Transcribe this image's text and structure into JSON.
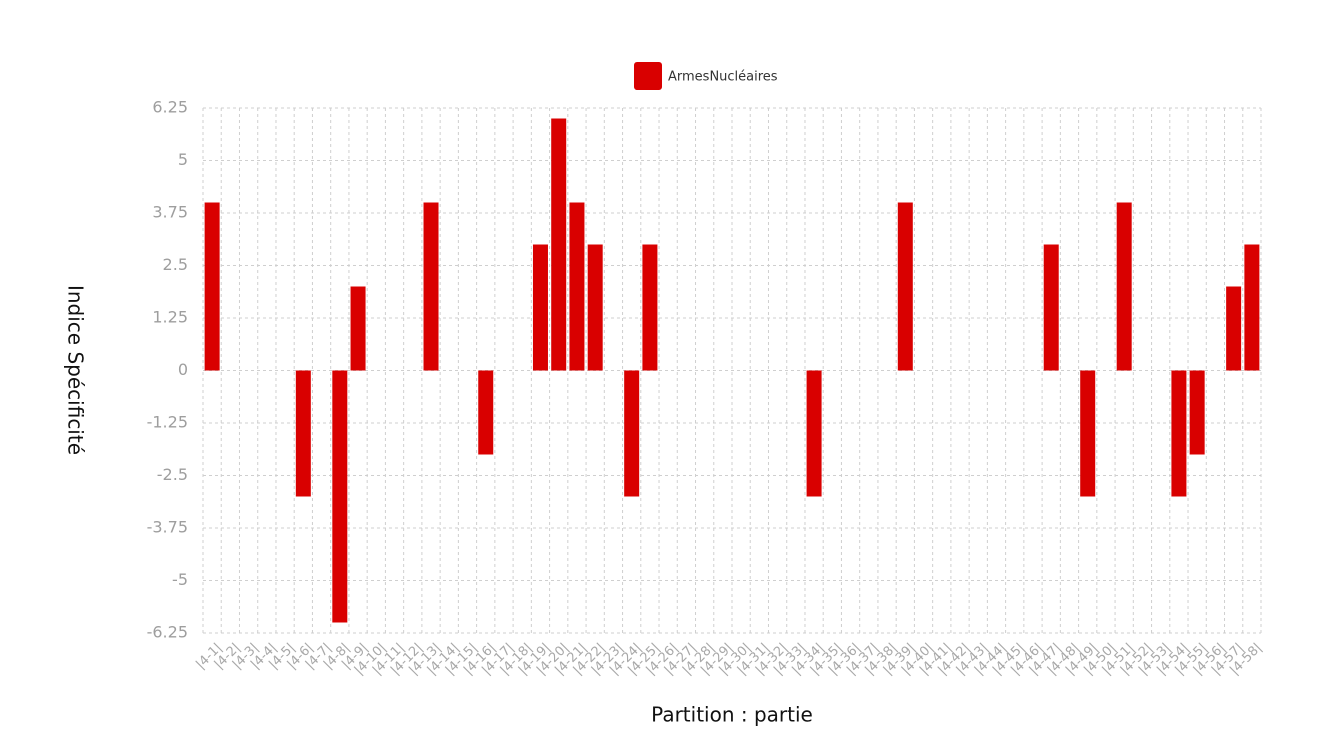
{
  "chart_data": {
    "type": "bar",
    "categories": [
      "|4-1|",
      "|4-2|",
      "|4-3|",
      "|4-4|",
      "|4-5|",
      "|4-6|",
      "|4-7|",
      "|4-8|",
      "|4-9|",
      "|4-10|",
      "|4-11|",
      "|4-12|",
      "|4-13|",
      "|4-14|",
      "|4-15|",
      "|4-16|",
      "|4-17|",
      "|4-18|",
      "|4-19|",
      "|4-20|",
      "|4-21|",
      "|4-22|",
      "|4-23|",
      "|4-24|",
      "|4-25|",
      "|4-26|",
      "|4-27|",
      "|4-28|",
      "|4-29|",
      "|4-30|",
      "|4-31|",
      "|4-32|",
      "|4-33|",
      "|4-34|",
      "|4-35|",
      "|4-36|",
      "|4-37|",
      "|4-38|",
      "|4-39|",
      "|4-40|",
      "|4-41|",
      "|4-42|",
      "|4-43|",
      "|4-44|",
      "|4-45|",
      "|4-46|",
      "|4-47|",
      "|4-48|",
      "|4-49|",
      "|4-50|",
      "|4-51|",
      "|4-52|",
      "|4-53|",
      "|4-54|",
      "|4-55|",
      "|4-56|",
      "|4-57|",
      "|4-58|"
    ],
    "series": [
      {
        "name": "ArmesNucléaires",
        "color": "#d90000",
        "values": [
          4,
          0,
          0,
          0,
          0,
          -3,
          0,
          -6,
          2,
          0,
          0,
          0,
          4,
          0,
          0,
          -2,
          0,
          0,
          3,
          6,
          4,
          3,
          0,
          -3,
          3,
          0,
          0,
          0,
          0,
          0,
          0,
          0,
          0,
          -3,
          0,
          0,
          0,
          0,
          4,
          0,
          0,
          0,
          0,
          0,
          0,
          0,
          3,
          0,
          -3,
          0,
          4,
          0,
          0,
          -3,
          -2,
          0,
          2,
          3
        ]
      }
    ],
    "yticks": [
      "6.25",
      "5",
      "3.75",
      "2.5",
      "1.25",
      "0",
      "-1.25",
      "-2.5",
      "-3.75",
      "-5",
      "-6.25"
    ],
    "ylim": [
      -6.25,
      6.25
    ],
    "xlabel": "Partition : partie",
    "ylabel": "Indice Spécificité",
    "grid": true,
    "legend_position": "top-center"
  }
}
